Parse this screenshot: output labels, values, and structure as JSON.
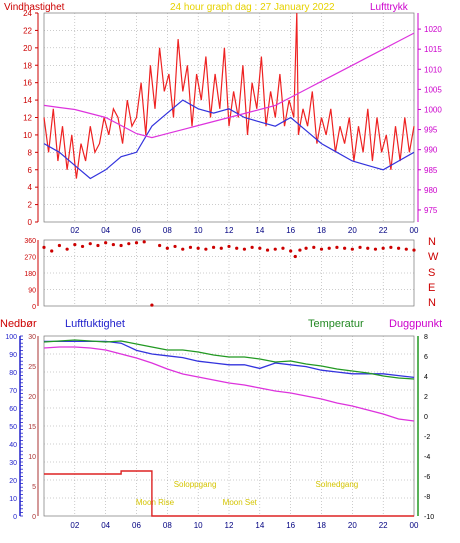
{
  "header": {
    "left_label": "Vindhastighet",
    "center_label": "24 hour graph dag : 27 January 2022",
    "right_label": "Lufttrykk",
    "left_color": "#cc0000",
    "center_color": "#e6d200",
    "right_color": "#cc00cc"
  },
  "bottom_header": {
    "nedbor": "Nedbør",
    "luftfuktighet": "Luftfuktighet",
    "temperatur": "Temperatur",
    "duggpunkt": "Duggpunkt"
  },
  "compass": [
    "N",
    "W",
    "S",
    "E",
    "N"
  ],
  "x_ticks": [
    "02",
    "04",
    "06",
    "08",
    "10",
    "12",
    "14",
    "16",
    "18",
    "20",
    "22",
    "00"
  ],
  "chart_data": [
    {
      "type": "line",
      "title": "24 hour graph dag : 27 January 2022",
      "xlabel": "",
      "ylabel": "",
      "x_range_hours": [
        0,
        24
      ],
      "y_left": {
        "label": "Vindhastighet",
        "range": [
          0,
          24
        ],
        "ticks": [
          0,
          2,
          4,
          6,
          8,
          10,
          12,
          14,
          16,
          18,
          20,
          22,
          24
        ]
      },
      "y_right": {
        "label": "Lufttrykk",
        "range": [
          972,
          1024
        ],
        "ticks": [
          975,
          980,
          985,
          990,
          995,
          1000,
          1005,
          1010,
          1015,
          1020
        ]
      },
      "grid": true,
      "series": [
        {
          "name": "Vindhastighet",
          "axis": "left",
          "color": "#ee2222",
          "x": [
            0.0,
            0.3,
            0.6,
            0.9,
            1.2,
            1.5,
            1.8,
            2.1,
            2.4,
            2.7,
            3.0,
            3.3,
            3.6,
            3.9,
            4.2,
            4.5,
            4.8,
            5.1,
            5.4,
            5.7,
            6.0,
            6.3,
            6.6,
            6.9,
            7.2,
            7.5,
            7.8,
            8.1,
            8.4,
            8.7,
            9.0,
            9.3,
            9.6,
            9.9,
            10.2,
            10.5,
            10.8,
            11.1,
            11.4,
            11.7,
            12.0,
            12.3,
            12.6,
            12.9,
            13.2,
            13.5,
            13.8,
            14.1,
            14.4,
            14.7,
            15.0,
            15.3,
            15.6,
            15.9,
            16.2,
            16.4,
            16.5,
            16.8,
            17.1,
            17.4,
            17.7,
            18.0,
            18.3,
            18.6,
            18.9,
            19.2,
            19.5,
            19.8,
            20.1,
            20.4,
            20.7,
            21.0,
            21.3,
            21.6,
            21.9,
            22.2,
            22.5,
            22.8,
            23.1,
            23.4,
            23.7,
            24.0
          ],
          "y": [
            12,
            8,
            13,
            7,
            11,
            6,
            10,
            5,
            9,
            7,
            11,
            8,
            9,
            12,
            10,
            13,
            12,
            9,
            14,
            11,
            12,
            16,
            10,
            18,
            13,
            20,
            15,
            17,
            12,
            21,
            15,
            18,
            11,
            17,
            14,
            19,
            12,
            17,
            13,
            20,
            11,
            15,
            12,
            18,
            10,
            16,
            13,
            19,
            11,
            15,
            12,
            17,
            11,
            14,
            12,
            24,
            10,
            13,
            11,
            15,
            9,
            12,
            10,
            13,
            8,
            11,
            9,
            12,
            7,
            11,
            8,
            13,
            7,
            12,
            8,
            10,
            6,
            11,
            7,
            12,
            8,
            11
          ]
        },
        {
          "name": "Vindhastighet (snitt)",
          "axis": "left",
          "color": "#3333dd",
          "x": [
            0,
            1,
            2,
            3,
            4,
            5,
            6,
            7,
            8,
            9,
            10,
            11,
            12,
            13,
            14,
            15,
            16,
            17,
            18,
            19,
            20,
            21,
            22,
            23,
            24
          ],
          "y": [
            9,
            8,
            6.5,
            5,
            6,
            7.5,
            8,
            11,
            12.5,
            14,
            13,
            12.5,
            13,
            12,
            11.5,
            11,
            12,
            10.5,
            9,
            8,
            7,
            6.5,
            6,
            7,
            8
          ]
        },
        {
          "name": "Lufttrykk",
          "axis": "right",
          "color": "#dd33dd",
          "x": [
            0,
            1,
            2,
            3,
            4,
            5,
            6,
            7,
            8,
            9,
            10,
            11,
            12,
            13,
            14,
            15,
            16,
            17,
            18,
            19,
            20,
            21,
            22,
            23,
            24
          ],
          "y": [
            1001,
            1000.5,
            1000,
            999,
            998,
            996,
            994,
            993,
            994,
            995,
            996,
            997,
            998,
            999,
            1000,
            1001,
            1003,
            1005,
            1007,
            1009,
            1011,
            1013,
            1015,
            1017,
            1019
          ]
        }
      ]
    },
    {
      "type": "scatter",
      "title": "",
      "y_ticks": [
        0,
        90,
        180,
        270,
        360
      ],
      "y_range": [
        0,
        360
      ],
      "series": [
        {
          "name": "Vindretning",
          "color": "#cc0000",
          "x": [
            0,
            0.5,
            1,
            1.5,
            2,
            2.5,
            3,
            3.5,
            4,
            4.5,
            5,
            5.5,
            6,
            6.5,
            7.0,
            7.5,
            8,
            8.5,
            9,
            9.5,
            10,
            10.5,
            11,
            11.5,
            12,
            12.5,
            13,
            13.5,
            14,
            14.5,
            15,
            15.5,
            16,
            16.3,
            16.6,
            17,
            17.5,
            18,
            18.5,
            19,
            19.5,
            20,
            20.5,
            21,
            21.5,
            22,
            22.5,
            23,
            23.5,
            24
          ],
          "y": [
            320,
            300,
            330,
            310,
            335,
            325,
            340,
            330,
            345,
            335,
            330,
            340,
            345,
            350,
            5,
            330,
            315,
            325,
            310,
            320,
            315,
            310,
            320,
            315,
            325,
            315,
            310,
            320,
            315,
            305,
            310,
            315,
            300,
            270,
            305,
            315,
            320,
            310,
            315,
            320,
            315,
            310,
            320,
            315,
            310,
            315,
            320,
            315,
            310,
            305
          ]
        }
      ]
    },
    {
      "type": "line",
      "title": "",
      "y_left": {
        "label": "Luftfuktighet",
        "range": [
          0,
          100
        ],
        "ticks": [
          0,
          10,
          20,
          30,
          40,
          50,
          60,
          70,
          80,
          90,
          100
        ]
      },
      "y_nedbor": {
        "label": "Nedbør",
        "range": [
          0,
          30
        ],
        "ticks": [
          0,
          5,
          10,
          15,
          20,
          25,
          30
        ]
      },
      "y_right": {
        "label": "Temperatur",
        "range": [
          -10,
          8
        ],
        "ticks": [
          -10,
          -8,
          -6,
          -4,
          -2,
          0,
          2,
          4,
          6,
          8
        ]
      },
      "annotations": [
        "Moon Rise",
        "Soloppgang",
        "Moon Set",
        "Solnedgang"
      ],
      "series": [
        {
          "name": "Luftfuktighet",
          "axis": "left",
          "color": "#3333dd",
          "x": [
            0,
            1,
            2,
            3,
            4,
            5,
            6,
            7,
            8,
            9,
            10,
            11,
            12,
            13,
            14,
            15,
            16,
            17,
            18,
            19,
            20,
            21,
            22,
            23,
            24
          ],
          "y": [
            97,
            97,
            97,
            97,
            97,
            96,
            92,
            90,
            89,
            88,
            86,
            85,
            84,
            84,
            82,
            85,
            84,
            83,
            81,
            80,
            79,
            79,
            79,
            78,
            77
          ]
        },
        {
          "name": "Temperatur",
          "axis": "right",
          "color": "#229922",
          "x": [
            0,
            1,
            2,
            3,
            4,
            5,
            6,
            7,
            8,
            9,
            10,
            11,
            12,
            13,
            14,
            15,
            16,
            17,
            18,
            19,
            20,
            21,
            22,
            23,
            24
          ],
          "y": [
            7.4,
            7.5,
            7.6,
            7.5,
            7.4,
            7.5,
            7.2,
            6.9,
            6.6,
            6.6,
            6.4,
            6.1,
            5.9,
            5.9,
            5.7,
            5.4,
            5.5,
            5.2,
            5.0,
            4.7,
            4.5,
            4.3,
            4.0,
            3.8,
            3.7
          ]
        },
        {
          "name": "Duggpunkt",
          "axis": "right",
          "color": "#dd33dd",
          "x": [
            0,
            1,
            2,
            3,
            4,
            5,
            6,
            7,
            8,
            9,
            10,
            11,
            12,
            13,
            14,
            15,
            16,
            17,
            18,
            19,
            20,
            21,
            22,
            23,
            24
          ],
          "y": [
            6.8,
            6.9,
            6.9,
            6.8,
            6.6,
            6.2,
            5.8,
            5.3,
            4.7,
            4.2,
            3.9,
            3.6,
            3.3,
            3.1,
            2.8,
            2.5,
            2.3,
            2.0,
            1.7,
            1.3,
            1.0,
            0.6,
            0.2,
            -0.3,
            -0.5
          ]
        },
        {
          "name": "Nedbør",
          "axis": "nedbor",
          "color": "#dd2222",
          "x": [
            0,
            5,
            5,
            7,
            7,
            24
          ],
          "y": [
            7,
            7,
            7.5,
            7.5,
            0,
            0
          ]
        }
      ]
    }
  ]
}
